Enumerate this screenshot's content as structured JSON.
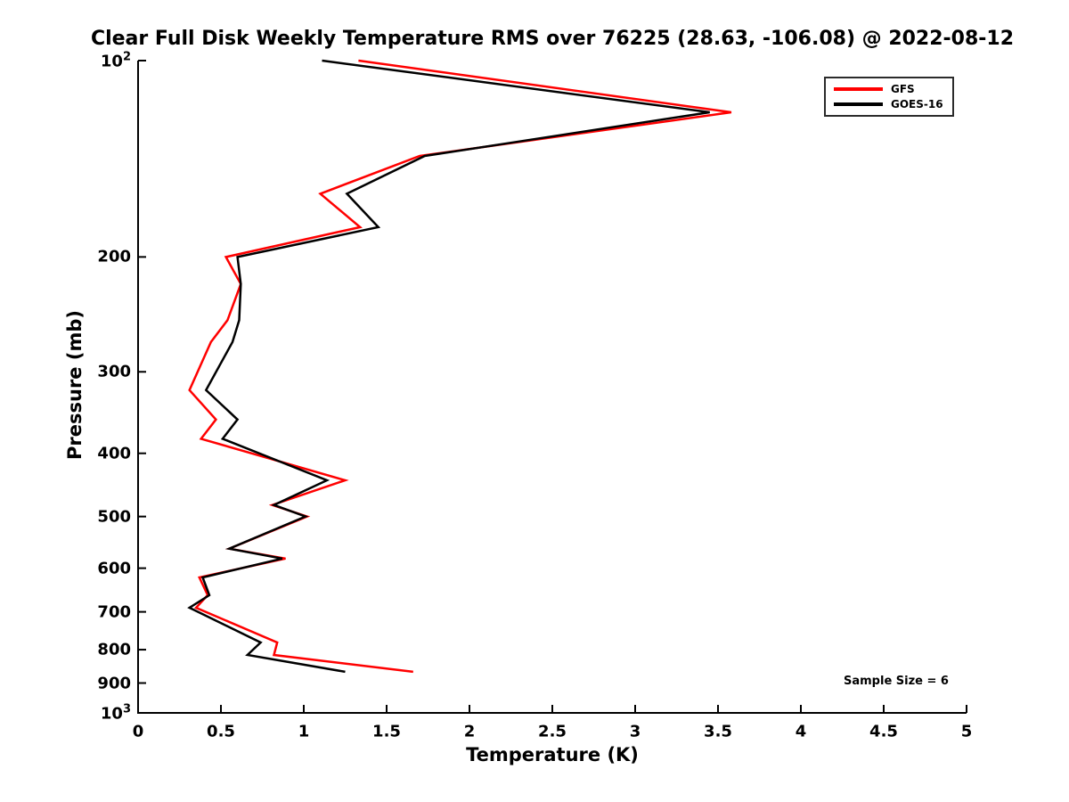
{
  "title": "Clear Full Disk Weekly Temperature RMS over 76225 (28.63, -106.08) @ 2022-08-12",
  "annotations": {
    "sample_size": "Sample Size = 6"
  },
  "legend": {
    "position": "upper-right",
    "items": [
      {
        "label": "GFS",
        "color": "#ff0000"
      },
      {
        "label": "GOES-16",
        "color": "#000000"
      }
    ]
  },
  "colors": {
    "axis": "#000000",
    "text": "#000000",
    "background": "#ffffff"
  },
  "chart_data": {
    "type": "line",
    "title": "Clear Full Disk Weekly Temperature RMS over 76225 (28.63, -106.08) @ 2022-08-12",
    "xlabel": "Temperature (K)",
    "ylabel": "Pressure (mb)",
    "xlim": [
      0,
      5
    ],
    "ylim": [
      100,
      1000
    ],
    "y_scale": "log",
    "y_inverted": true,
    "grid": false,
    "legend_position": "upper right",
    "x_ticks": [
      0,
      0.5,
      1,
      1.5,
      2,
      2.5,
      3,
      3.5,
      4,
      4.5,
      5
    ],
    "x_tick_labels": [
      "0",
      "0.5",
      "1",
      "1.5",
      "2",
      "2.5",
      "3",
      "3.5",
      "4",
      "4.5",
      "5"
    ],
    "y_ticks": [
      100,
      200,
      300,
      400,
      500,
      600,
      700,
      800,
      900,
      1000
    ],
    "y_tick_labels": [
      "10^2",
      "200",
      "300",
      "400",
      "500",
      "600",
      "700",
      "800",
      "900",
      "10^3"
    ],
    "pressure_mb": [
      100,
      120,
      140,
      160,
      180,
      200,
      220,
      250,
      270,
      320,
      355,
      380,
      440,
      480,
      500,
      560,
      580,
      620,
      660,
      690,
      780,
      815,
      865
    ],
    "series": [
      {
        "name": "GFS",
        "color": "#ff0000",
        "values": [
          1.33,
          3.58,
          1.7,
          1.1,
          1.34,
          0.53,
          0.62,
          0.54,
          0.44,
          0.31,
          0.47,
          0.38,
          1.25,
          0.81,
          1.02,
          0.55,
          0.89,
          0.37,
          0.42,
          0.35,
          0.84,
          0.82,
          1.66
        ]
      },
      {
        "name": "GOES-16",
        "color": "#000000",
        "values": [
          1.11,
          3.45,
          1.73,
          1.26,
          1.45,
          0.6,
          0.62,
          0.61,
          0.57,
          0.41,
          0.6,
          0.51,
          1.14,
          0.82,
          1.01,
          0.55,
          0.87,
          0.39,
          0.43,
          0.31,
          0.74,
          0.66,
          1.25
        ]
      }
    ]
  }
}
